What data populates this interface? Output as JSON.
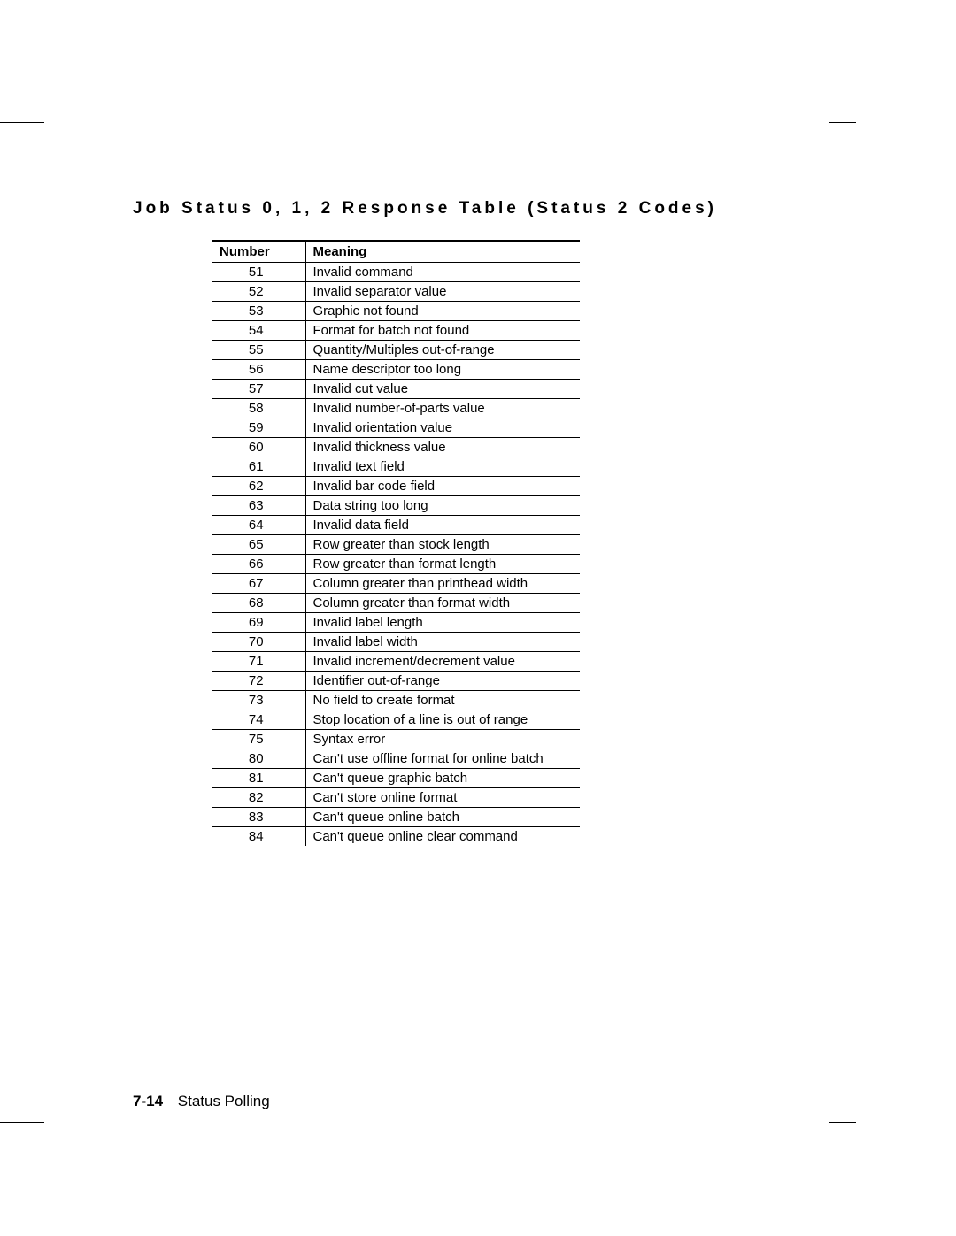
{
  "heading": "Job Status 0, 1, 2 Response Table (Status 2 Codes)",
  "table": {
    "columns": [
      "Number",
      "Meaning"
    ],
    "rows": [
      [
        "51",
        "Invalid command"
      ],
      [
        "52",
        "Invalid separator value"
      ],
      [
        "53",
        "Graphic not found"
      ],
      [
        "54",
        "Format for batch not found"
      ],
      [
        "55",
        "Quantity/Multiples out-of-range"
      ],
      [
        "56",
        "Name descriptor too long"
      ],
      [
        "57",
        "Invalid cut value"
      ],
      [
        "58",
        "Invalid number-of-parts value"
      ],
      [
        "59",
        "Invalid orientation value"
      ],
      [
        "60",
        "Invalid thickness value"
      ],
      [
        "61",
        "Invalid text field"
      ],
      [
        "62",
        "Invalid bar code field"
      ],
      [
        "63",
        "Data string too long"
      ],
      [
        "64",
        "Invalid data field"
      ],
      [
        "65",
        "Row greater than stock length"
      ],
      [
        "66",
        "Row greater than format length"
      ],
      [
        "67",
        "Column greater than printhead width"
      ],
      [
        "68",
        "Column greater than format width"
      ],
      [
        "69",
        "Invalid label length"
      ],
      [
        "70",
        "Invalid label width"
      ],
      [
        "71",
        "Invalid increment/decrement value"
      ],
      [
        "72",
        "Identifier out-of-range"
      ],
      [
        "73",
        "No field to create format"
      ],
      [
        "74",
        "Stop location of a line is out of range"
      ],
      [
        "75",
        "Syntax error"
      ],
      [
        "80",
        "Can't use offline format for online batch"
      ],
      [
        "81",
        "Can't queue graphic batch"
      ],
      [
        "82",
        "Can't store online format"
      ],
      [
        "83",
        "Can't queue online batch"
      ],
      [
        "84",
        "Can't queue online clear command"
      ]
    ]
  },
  "footer": {
    "page_number": "7-14",
    "section_title": "Status Polling"
  },
  "style": {
    "background_color": "#ffffff",
    "text_color": "#000000",
    "heading_fontsize": 19,
    "heading_letter_spacing": 4,
    "table_fontsize": 15,
    "footer_fontsize": 17,
    "border_color": "#000000"
  }
}
